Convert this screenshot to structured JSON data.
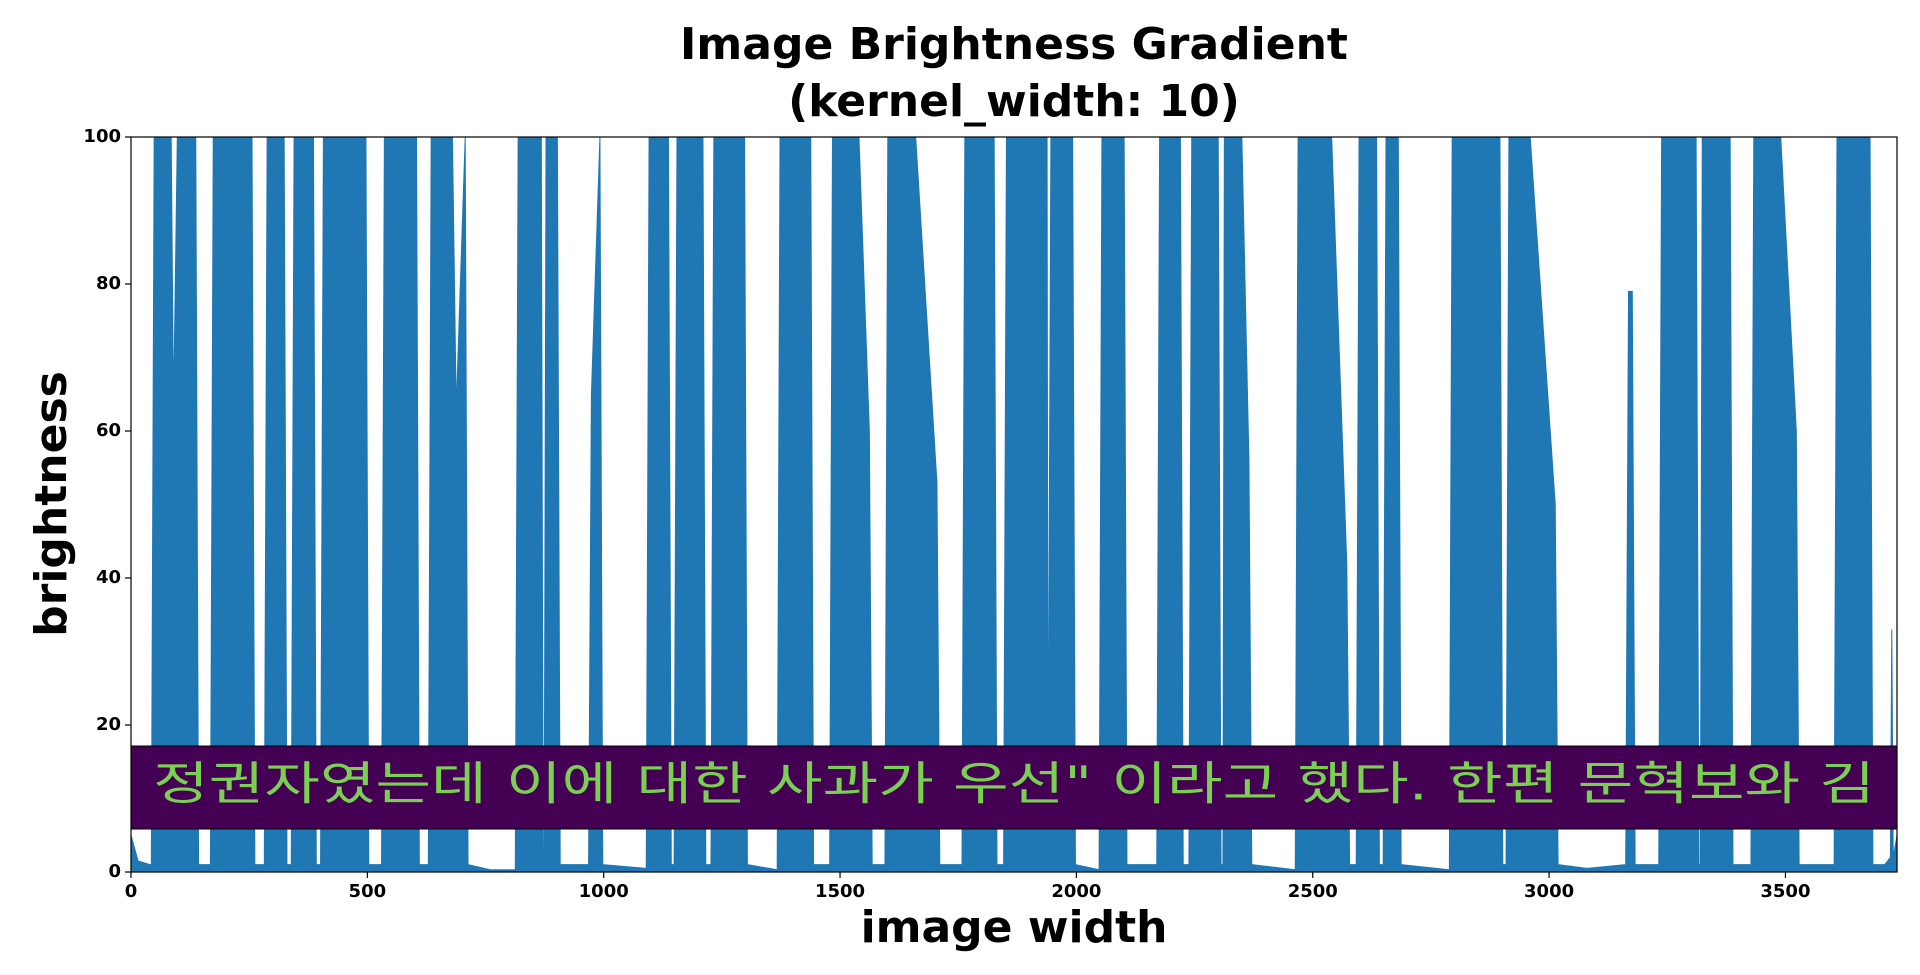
{
  "chart_data": {
    "type": "area",
    "title": "Image Brightness Gradient",
    "subtitle": "(kernel_width: 10)",
    "x_label": "image width",
    "y_label": "brightness",
    "image_text": "정권자였는데 이에 대한 사과가 우선\" 이라고 했다. 한편 문혁보와 김",
    "color": "#1f77b4",
    "grid": false,
    "xlim": [
      0,
      3736
    ],
    "ylim": [
      0,
      100
    ],
    "xticks": [
      0,
      500,
      1000,
      1500,
      2000,
      2500,
      3000,
      3500
    ],
    "yticks": [
      0,
      20,
      40,
      60,
      80,
      100
    ],
    "x": [
      0,
      15,
      40,
      43,
      49,
      85,
      90,
      98,
      137,
      143,
      168,
      174,
      256,
      262,
      282,
      288,
      324,
      330,
      339,
      345,
      386,
      392,
      401,
      407,
      497,
      503,
      530,
      536,
      604,
      610,
      629,
      635,
      680,
      688,
      707,
      713,
      760,
      813,
      819,
      868,
      872,
      874,
      878,
      902,
      908,
      968,
      974,
      992,
      998,
      1090,
      1096,
      1137,
      1143,
      1149,
      1155,
      1210,
      1216,
      1227,
      1233,
      1298,
      1304,
      1367,
      1373,
      1438,
      1444,
      1478,
      1484,
      1540,
      1562,
      1568,
      1595,
      1601,
      1660,
      1705,
      1711,
      1758,
      1764,
      1826,
      1832,
      1846,
      1852,
      1938,
      1940,
      1946,
      1992,
      1998,
      2048,
      2054,
      2101,
      2107,
      2170,
      2176,
      2220,
      2226,
      2238,
      2244,
      2300,
      2306,
      2310,
      2313,
      2350,
      2365,
      2371,
      2463,
      2469,
      2540,
      2572,
      2578,
      2592,
      2598,
      2635,
      2641,
      2649,
      2655,
      2681,
      2687,
      2789,
      2795,
      2896,
      2902,
      2909,
      2915,
      2960,
      3013,
      3019,
      3080,
      3162,
      3168,
      3176,
      3182,
      3232,
      3238,
      3311,
      3317,
      3320,
      3324,
      3383,
      3389,
      3427,
      3433,
      3490,
      3523,
      3529,
      3603,
      3609,
      3679,
      3685,
      3710,
      3722,
      3725,
      3728,
      3736
    ],
    "values": [
      5,
      1.5,
      1,
      1,
      100,
      100,
      63,
      100,
      100,
      1,
      1,
      100,
      100,
      1,
      1,
      100,
      100,
      1,
      1,
      100,
      100,
      1,
      1,
      100,
      100,
      1,
      1,
      100,
      100,
      1,
      1,
      100,
      100,
      63,
      100,
      1,
      0.3,
      0.3,
      100,
      100,
      1,
      1,
      100,
      100,
      1,
      1,
      65,
      100,
      1,
      0.5,
      100,
      100,
      1,
      1,
      100,
      100,
      1,
      1,
      100,
      100,
      1,
      0.3,
      100,
      100,
      1,
      1,
      100,
      100,
      60,
      1,
      1,
      100,
      100,
      53,
      1,
      1,
      100,
      100,
      1,
      1,
      100,
      100,
      5,
      100,
      100,
      1,
      0.3,
      100,
      100,
      1,
      1,
      100,
      100,
      1,
      1,
      100,
      100,
      1,
      1,
      100,
      100,
      56,
      1,
      0.3,
      100,
      100,
      42,
      1,
      1,
      100,
      100,
      1,
      1,
      100,
      100,
      1,
      0.3,
      100,
      100,
      1,
      1,
      100,
      100,
      50,
      1,
      0.5,
      1,
      79,
      79,
      1,
      1,
      100,
      100,
      1,
      1,
      100,
      100,
      1,
      1,
      100,
      100,
      60,
      1,
      1,
      100,
      100,
      1,
      1,
      2,
      33,
      2,
      5
    ]
  }
}
